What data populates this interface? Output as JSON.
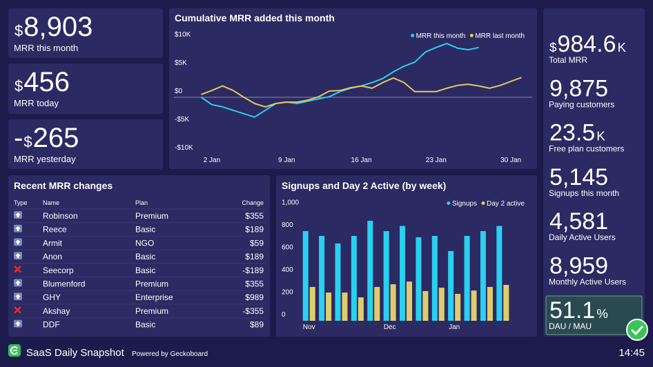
{
  "kpis": [
    {
      "prefix": "$",
      "value": "8,903",
      "label": "MRR this month"
    },
    {
      "prefix": "$",
      "value": "456",
      "label": "MRR today"
    },
    {
      "sign": "-",
      "prefix": "$",
      "value": "265",
      "label": "MRR yesterday"
    }
  ],
  "totals": [
    {
      "prefix": "$",
      "value": "984.6",
      "suffix": "K",
      "label": "Total MRR"
    },
    {
      "value": "9,875",
      "label": "Paying customers"
    },
    {
      "value": "23.5",
      "suffix": "K",
      "label": "Free plan customers"
    },
    {
      "value": "5,145",
      "label": "Signups this month"
    },
    {
      "value": "4,581",
      "label": "Daily Active Users"
    },
    {
      "value": "8,959",
      "label": "Monthly Active Users"
    },
    {
      "value": "51.1",
      "suffix": "%",
      "label": "DAU / MAU"
    }
  ],
  "table": {
    "title": "Recent MRR changes",
    "columns": [
      "Type",
      "Name",
      "Plan",
      "Change"
    ],
    "rows": [
      [
        "Robinson",
        "Premium",
        "$355"
      ],
      [
        "Reece",
        "Basic",
        "$189"
      ],
      [
        "Armit",
        "NGO",
        "$59"
      ],
      [
        "Anon",
        "Basic",
        "$189"
      ],
      [
        "Seecorp",
        "Basic",
        "-$189"
      ],
      [
        "Blumenford",
        "Premium",
        "$355"
      ],
      [
        "GHY",
        "Enterprise",
        "$989"
      ],
      [
        "Akshay",
        "Premium",
        "-$355"
      ],
      [
        "DDF",
        "Basic",
        "$89"
      ]
    ]
  },
  "chart_data": [
    {
      "type": "line",
      "title": "Cumulative MRR added this month",
      "x": [
        1,
        2,
        3,
        4,
        5,
        6,
        7,
        8,
        9,
        10,
        11,
        12,
        13,
        14,
        15,
        16,
        17,
        18,
        19,
        20,
        21,
        22,
        23,
        24,
        25,
        26,
        27,
        28,
        29,
        30,
        31
      ],
      "xlim": [
        0,
        32
      ],
      "xticks": [
        {
          "value": 2,
          "label": "2 Jan"
        },
        {
          "value": 9,
          "label": "9 Jan"
        },
        {
          "value": 16,
          "label": "16 Jan"
        },
        {
          "value": 23,
          "label": "23 Jan"
        },
        {
          "value": 30,
          "label": "30 Jan"
        }
      ],
      "ylim": [
        -10000,
        10000
      ],
      "yticks": [
        {
          "value": -10000,
          "label": "-$10K"
        },
        {
          "value": -5000,
          "label": "-$5K"
        },
        {
          "value": 0,
          "label": "$0"
        },
        {
          "value": 5000,
          "label": "$5K"
        },
        {
          "value": 10000,
          "label": "$10K"
        }
      ],
      "legend": "top-right",
      "series": [
        {
          "name": "MRR this month",
          "color": "#2ad0f0",
          "values": [
            0,
            -1300,
            -1700,
            -2300,
            -2900,
            -3500,
            -2300,
            -1100,
            -850,
            -1100,
            -700,
            -250,
            100,
            1000,
            1600,
            2000,
            2600,
            3300,
            4500,
            5500,
            6200,
            8000,
            8800,
            9500,
            8700,
            8400,
            8800,
            null,
            null,
            null,
            null
          ]
        },
        {
          "name": "MRR last month",
          "color": "#e8c85a",
          "values": [
            500,
            1200,
            2000,
            1200,
            0,
            -1100,
            -1700,
            -1100,
            -850,
            -850,
            -500,
            100,
            1100,
            1200,
            1700,
            2000,
            1600,
            2600,
            3400,
            2600,
            1000,
            1000,
            1000,
            1600,
            2100,
            2300,
            2000,
            1600,
            2100,
            2800,
            3500
          ]
        }
      ]
    },
    {
      "type": "bar",
      "title": "Signups and Day 2 Active (by week)",
      "categories": [
        "Nov",
        null,
        null,
        null,
        null,
        "Dec",
        null,
        null,
        null,
        "Jan",
        null,
        null,
        null
      ],
      "ylim": [
        0,
        1000
      ],
      "yticks": [
        0,
        200,
        400,
        600,
        800,
        {
          "value": 1000,
          "label": "1,000"
        }
      ],
      "legend": "top-right",
      "series": [
        {
          "name": "Signups",
          "color": "#2ad0f0",
          "values": [
            800,
            757,
            690,
            757,
            892,
            800,
            846,
            745,
            757,
            622,
            757,
            800,
            846
          ]
        },
        {
          "name": "Day 2 active",
          "color": "#e0cc6a",
          "values": [
            302,
            252,
            252,
            209,
            302,
            326,
            350,
            265,
            295,
            240,
            270,
            302,
            320
          ]
        }
      ]
    }
  ],
  "footer": {
    "title": "SaaS Daily Snapshot",
    "powered": "Powered by Geckoboard",
    "time": "14:45"
  }
}
